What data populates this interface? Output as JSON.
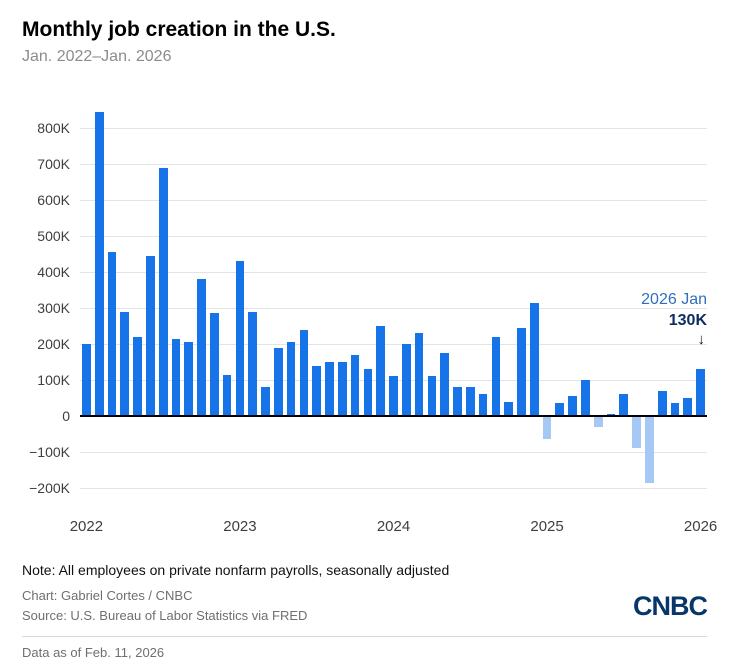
{
  "header": {
    "title": "Monthly job creation in the U.S.",
    "subtitle": "Jan. 2022–Jan. 2026"
  },
  "chart_data": {
    "type": "bar",
    "title": "Monthly job creation in the U.S.",
    "subtitle": "Jan. 2022–Jan. 2026",
    "value_unit": "K",
    "categories": [
      "Jan 2022",
      "Feb 2022",
      "Mar 2022",
      "Apr 2022",
      "May 2022",
      "Jun 2022",
      "Jul 2022",
      "Aug 2022",
      "Sep 2022",
      "Oct 2022",
      "Nov 2022",
      "Dec 2022",
      "Jan 2023",
      "Feb 2023",
      "Mar 2023",
      "Apr 2023",
      "May 2023",
      "Jun 2023",
      "Jul 2023",
      "Aug 2023",
      "Sep 2023",
      "Oct 2023",
      "Nov 2023",
      "Dec 2023",
      "Jan 2024",
      "Feb 2024",
      "Mar 2024",
      "Apr 2024",
      "May 2024",
      "Jun 2024",
      "Jul 2024",
      "Aug 2024",
      "Sep 2024",
      "Oct 2024",
      "Nov 2024",
      "Dec 2024",
      "Jan 2025",
      "Feb 2025",
      "Mar 2025",
      "Apr 2025",
      "May 2025",
      "Jun 2025",
      "Jul 2025",
      "Aug 2025",
      "Sep 2025",
      "Oct 2025",
      "Nov 2025",
      "Dec 2025",
      "Jan 2026"
    ],
    "values": [
      200,
      845,
      455,
      290,
      220,
      445,
      690,
      215,
      205,
      380,
      285,
      115,
      430,
      290,
      80,
      190,
      205,
      240,
      140,
      150,
      150,
      170,
      130,
      250,
      110,
      200,
      230,
      110,
      175,
      80,
      80,
      60,
      220,
      40,
      245,
      315,
      -65,
      35,
      55,
      100,
      -30,
      5,
      60,
      -90,
      -185,
      70,
      35,
      50,
      130
    ],
    "ylim": [
      -250,
      900
    ],
    "yticks": [
      800,
      700,
      600,
      500,
      400,
      300,
      200,
      100,
      0,
      -100,
      -200
    ],
    "ytick_labels": [
      "800K",
      "700K",
      "600K",
      "500K",
      "400K",
      "300K",
      "200K",
      "100K",
      "0",
      "−100K",
      "−200K"
    ],
    "year_labels": [
      "2022",
      "2023",
      "2024",
      "2025",
      "2026"
    ],
    "year_tick_indices": [
      0,
      12,
      24,
      36,
      48
    ],
    "grid": "horizontal",
    "legend": "none",
    "annotation": {
      "label": "2026 Jan",
      "value": "130K",
      "arrow_glyph": "↓"
    },
    "colors": {
      "positive": "#1774e8",
      "negative": "#a6c8f4",
      "annotation_label": "#2f6fbe",
      "annotation_value": "#0c2d5e",
      "logo": "#07366b"
    }
  },
  "footer": {
    "note": "Note: All employees on private nonfarm payrolls, seasonally adjusted",
    "chart_credit": "Chart: Gabriel Cortes / CNBC",
    "source": "Source: U.S. Bureau of Labor Statistics via FRED",
    "data_as_of": "Data as of Feb. 11, 2026",
    "logo_text": "CNBC"
  }
}
